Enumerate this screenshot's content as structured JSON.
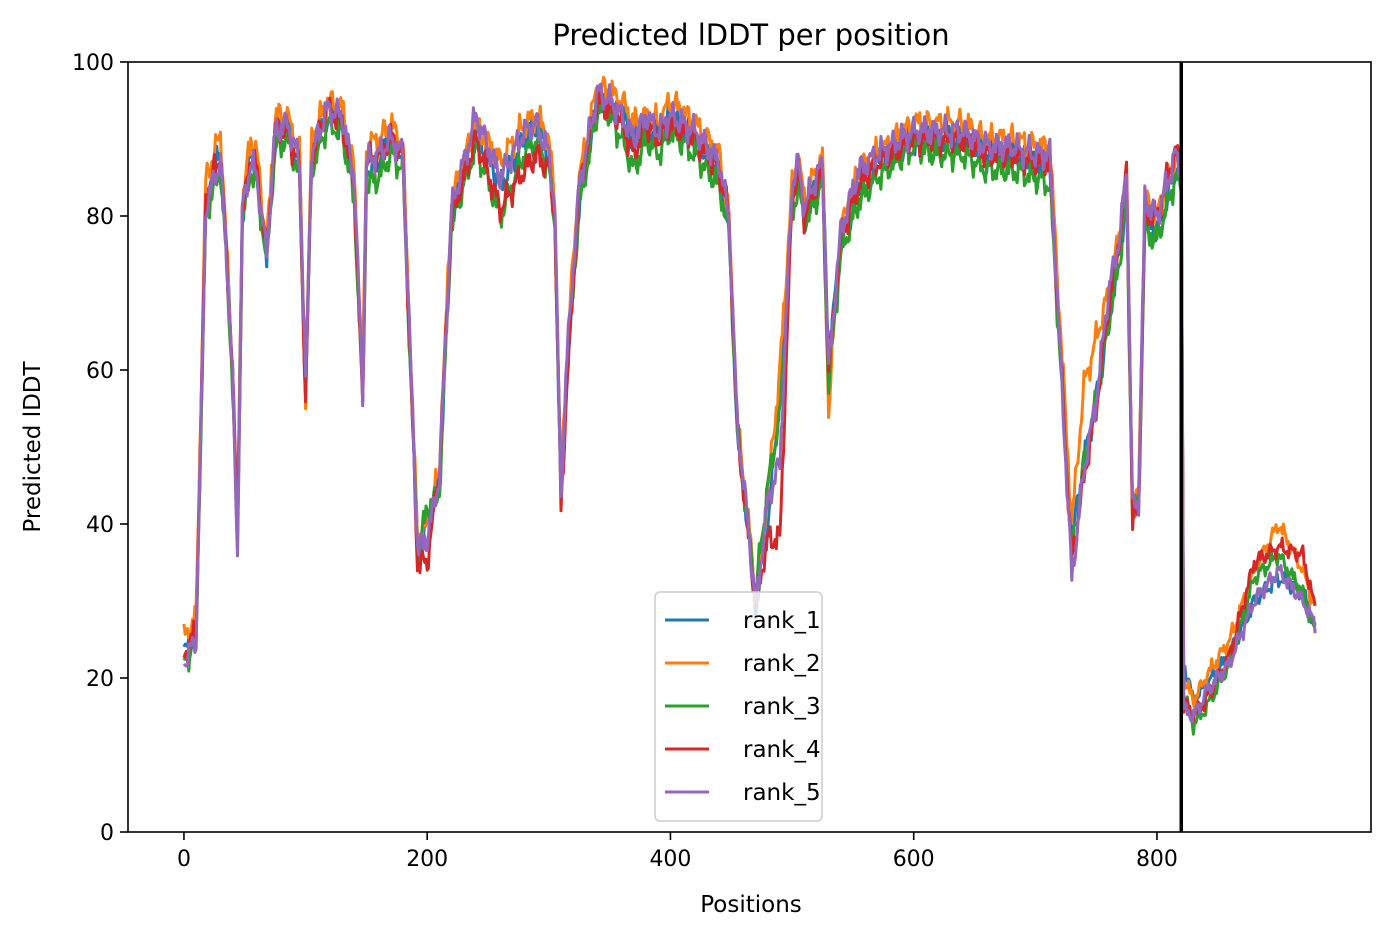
{
  "chart_data": {
    "type": "line",
    "title": "Predicted lDDT per position",
    "xlabel": "Positions",
    "ylabel": "Predicted lDDT",
    "xlim": [
      -46,
      976
    ],
    "ylim": [
      0,
      100
    ],
    "xticks": [
      0,
      200,
      400,
      600,
      800
    ],
    "yticks": [
      0,
      20,
      40,
      60,
      80,
      100
    ],
    "grid": false,
    "legend_position": "bottom-center",
    "vertical_line_x": 820,
    "series": [
      {
        "name": "rank_1",
        "color": "#1f77b4",
        "offset": 0.0,
        "phase": 0.3,
        "x": [
          0,
          10,
          18,
          25,
          30,
          35,
          40,
          44,
          48,
          55,
          60,
          68,
          75,
          85,
          95,
          100,
          105,
          118,
          130,
          140,
          147,
          150,
          160,
          170,
          180,
          192,
          200,
          210,
          220,
          240,
          260,
          280,
          290,
          300,
          305,
          310,
          315,
          325,
          340,
          350,
          360,
          370,
          380,
          390,
          400,
          420,
          440,
          448,
          455,
          465,
          470,
          480,
          490,
          500,
          505,
          510,
          525,
          530,
          540,
          555,
          570,
          600,
          620,
          640,
          660,
          680,
          700,
          712,
          730,
          740,
          750,
          760,
          770,
          775,
          780,
          785,
          790,
          800,
          810,
          815,
          820,
          822,
          830,
          840,
          860,
          880,
          900,
          920,
          930
        ],
        "y": [
          23,
          26,
          81,
          86,
          88,
          75,
          60,
          40,
          80,
          88,
          86,
          75,
          90,
          92,
          86,
          58,
          88,
          93,
          92,
          84,
          57,
          86,
          87,
          90,
          88,
          37,
          40,
          45,
          80,
          91,
          84,
          90,
          92,
          88,
          80,
          44,
          60,
          82,
          95,
          94,
          93,
          90,
          92,
          90,
          93,
          90,
          86,
          79,
          52,
          38,
          29,
          40,
          57,
          82,
          86,
          80,
          86,
          62,
          76,
          84,
          87,
          90,
          90,
          90,
          88,
          88,
          87,
          87,
          38,
          48,
          56,
          66,
          76,
          83,
          42,
          44,
          80,
          78,
          83,
          86,
          85,
          22,
          17,
          19,
          23,
          30,
          33,
          31,
          27
        ]
      },
      {
        "name": "rank_2",
        "color": "#ff7f0e",
        "offset": 1.2,
        "phase": 1.1,
        "x": [
          0,
          10,
          18,
          25,
          30,
          35,
          40,
          44,
          48,
          55,
          60,
          68,
          75,
          85,
          95,
          100,
          105,
          118,
          130,
          140,
          147,
          150,
          160,
          170,
          180,
          192,
          200,
          210,
          220,
          240,
          260,
          280,
          290,
          300,
          305,
          310,
          315,
          325,
          340,
          350,
          360,
          370,
          380,
          390,
          400,
          420,
          440,
          448,
          455,
          465,
          470,
          480,
          490,
          500,
          505,
          510,
          525,
          530,
          540,
          555,
          570,
          600,
          620,
          640,
          660,
          680,
          700,
          712,
          730,
          740,
          750,
          760,
          770,
          775,
          780,
          785,
          790,
          800,
          810,
          815,
          820,
          822,
          830,
          840,
          860,
          880,
          900,
          920,
          930
        ],
        "y": [
          25,
          28,
          85,
          88,
          91,
          76,
          60,
          38,
          82,
          90,
          88,
          76,
          93,
          93,
          88,
          57,
          90,
          95,
          94,
          86,
          58,
          89,
          90,
          92,
          89,
          38,
          40,
          47,
          82,
          92,
          87,
          92,
          93,
          90,
          82,
          44,
          63,
          85,
          97,
          96,
          95,
          92,
          93,
          92,
          95,
          92,
          88,
          80,
          53,
          39,
          30,
          44,
          60,
          84,
          88,
          82,
          88,
          55,
          78,
          86,
          88,
          92,
          92,
          92,
          90,
          90,
          89,
          89,
          40,
          58,
          64,
          70,
          78,
          86,
          42,
          44,
          82,
          80,
          85,
          88,
          87,
          20,
          17,
          20,
          25,
          34,
          40,
          34,
          29
        ]
      },
      {
        "name": "rank_3",
        "color": "#2ca02c",
        "offset": -1.0,
        "phase": 2.0,
        "x": [
          0,
          10,
          18,
          25,
          30,
          35,
          40,
          44,
          48,
          55,
          60,
          68,
          75,
          85,
          95,
          100,
          105,
          118,
          130,
          140,
          147,
          150,
          160,
          170,
          180,
          192,
          200,
          210,
          220,
          240,
          260,
          280,
          290,
          300,
          305,
          310,
          315,
          325,
          340,
          350,
          360,
          370,
          380,
          390,
          400,
          420,
          440,
          448,
          455,
          465,
          470,
          480,
          490,
          500,
          505,
          510,
          525,
          530,
          540,
          555,
          570,
          600,
          620,
          640,
          660,
          680,
          700,
          712,
          730,
          740,
          750,
          760,
          770,
          775,
          780,
          785,
          790,
          800,
          810,
          815,
          820,
          822,
          830,
          840,
          860,
          880,
          900,
          920,
          930
        ],
        "y": [
          22,
          25,
          80,
          84,
          86,
          74,
          58,
          38,
          79,
          86,
          84,
          74,
          89,
          90,
          85,
          57,
          86,
          92,
          91,
          82,
          56,
          84,
          85,
          88,
          86,
          36,
          42,
          44,
          79,
          89,
          80,
          88,
          90,
          86,
          79,
          43,
          60,
          81,
          94,
          93,
          90,
          86,
          90,
          88,
          91,
          88,
          84,
          78,
          52,
          38,
          31,
          45,
          54,
          80,
          84,
          79,
          84,
          58,
          75,
          82,
          85,
          89,
          88,
          88,
          86,
          86,
          85,
          84,
          36,
          48,
          56,
          66,
          75,
          82,
          41,
          43,
          78,
          77,
          82,
          85,
          84,
          18,
          14,
          16,
          22,
          33,
          36,
          31,
          26
        ]
      },
      {
        "name": "rank_4",
        "color": "#d62728",
        "offset": -0.5,
        "phase": 2.7,
        "x": [
          0,
          10,
          18,
          25,
          30,
          35,
          40,
          44,
          48,
          55,
          60,
          68,
          75,
          85,
          95,
          100,
          105,
          118,
          130,
          140,
          147,
          150,
          160,
          170,
          180,
          192,
          200,
          210,
          220,
          240,
          260,
          280,
          290,
          300,
          305,
          310,
          315,
          325,
          340,
          350,
          360,
          370,
          380,
          390,
          400,
          420,
          440,
          448,
          455,
          465,
          470,
          480,
          490,
          500,
          505,
          510,
          525,
          530,
          540,
          555,
          570,
          600,
          620,
          640,
          660,
          680,
          700,
          712,
          730,
          740,
          750,
          760,
          770,
          775,
          780,
          785,
          790,
          800,
          810,
          815,
          820,
          822,
          830,
          840,
          860,
          880,
          900,
          920,
          930
        ],
        "y": [
          23,
          26,
          82,
          86,
          88,
          75,
          60,
          38,
          80,
          88,
          86,
          75,
          91,
          91,
          86,
          55,
          88,
          94,
          92,
          84,
          55,
          87,
          88,
          90,
          88,
          35,
          35,
          47,
          80,
          90,
          81,
          86,
          88,
          86,
          80,
          42,
          58,
          84,
          95,
          94,
          92,
          88,
          92,
          90,
          92,
          90,
          86,
          80,
          52,
          37,
          30,
          38,
          38,
          82,
          86,
          80,
          86,
          60,
          77,
          84,
          87,
          90,
          90,
          90,
          88,
          88,
          87,
          87,
          35,
          46,
          55,
          68,
          78,
          86,
          40,
          42,
          80,
          80,
          86,
          88,
          87,
          17,
          15,
          17,
          23,
          35,
          37,
          36,
          29
        ]
      },
      {
        "name": "rank_5",
        "color": "#9467bd",
        "offset": 0.4,
        "phase": 3.6,
        "x": [
          0,
          10,
          18,
          25,
          30,
          35,
          40,
          44,
          48,
          55,
          60,
          68,
          75,
          85,
          95,
          100,
          105,
          118,
          130,
          140,
          147,
          150,
          160,
          170,
          180,
          192,
          200,
          210,
          220,
          240,
          260,
          280,
          290,
          300,
          305,
          310,
          315,
          325,
          340,
          350,
          360,
          370,
          380,
          390,
          400,
          420,
          440,
          448,
          455,
          465,
          470,
          480,
          490,
          500,
          505,
          510,
          525,
          530,
          540,
          555,
          570,
          600,
          620,
          640,
          660,
          680,
          700,
          712,
          730,
          740,
          750,
          760,
          770,
          775,
          780,
          785,
          790,
          800,
          810,
          815,
          820,
          822,
          830,
          840,
          860,
          880,
          900,
          920,
          930
        ],
        "y": [
          22,
          25,
          81,
          85,
          87,
          75,
          59,
          36,
          81,
          87,
          85,
          75,
          91,
          92,
          87,
          58,
          88,
          94,
          93,
          85,
          57,
          87,
          88,
          90,
          88,
          37,
          38,
          46,
          81,
          93,
          85,
          91,
          92,
          88,
          81,
          43,
          62,
          84,
          96,
          95,
          93,
          90,
          93,
          91,
          93,
          91,
          87,
          80,
          53,
          38,
          29,
          43,
          48,
          84,
          87,
          81,
          87,
          60,
          78,
          86,
          88,
          91,
          91,
          91,
          89,
          89,
          88,
          88,
          33,
          47,
          56,
          70,
          78,
          86,
          42,
          43,
          82,
          80,
          85,
          88,
          86,
          16,
          15,
          18,
          22,
          30,
          34,
          30,
          27
        ]
      }
    ]
  }
}
